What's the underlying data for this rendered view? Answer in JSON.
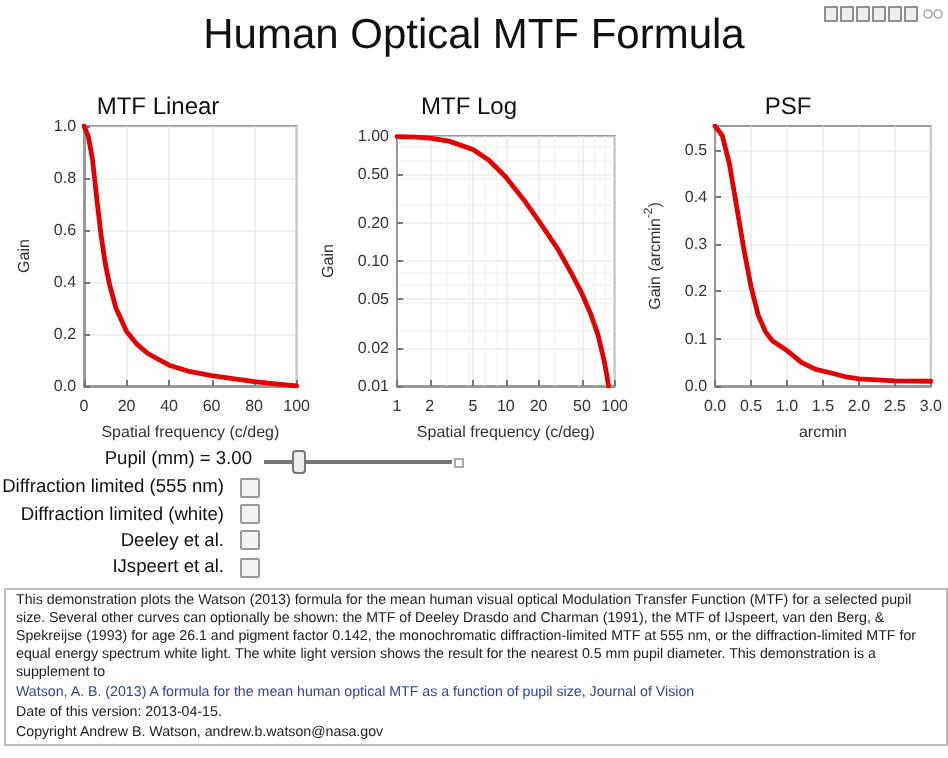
{
  "chart_data": [
    {
      "type": "other",
      "title": "Human Optical MTF Formula"
    },
    {
      "type": "line",
      "title": "MTF Linear",
      "xlabel": "Spatial frequency (c/deg)",
      "ylabel": "Gain",
      "x": [
        0,
        2,
        4,
        6,
        8,
        10,
        12,
        15,
        20,
        25,
        30,
        40,
        50,
        60,
        70,
        80,
        90,
        100
      ],
      "series": [
        {
          "color": "#e00000",
          "values": [
            1.0,
            0.96,
            0.87,
            0.72,
            0.58,
            0.47,
            0.39,
            0.3,
            0.21,
            0.16,
            0.125,
            0.08,
            0.055,
            0.04,
            0.028,
            0.017,
            0.008,
            0.0
          ]
        }
      ],
      "xlim": [
        0,
        100
      ],
      "xticks": [
        0,
        20,
        40,
        60,
        80,
        100
      ],
      "ylim": [
        0,
        1
      ],
      "yticks": [
        {
          "value": 0,
          "label": "0.0"
        },
        {
          "value": 0.2,
          "label": "0.2"
        },
        {
          "value": 0.4,
          "label": "0.4"
        },
        {
          "value": 0.6,
          "label": "0.6"
        },
        {
          "value": 0.8,
          "label": "0.8"
        },
        {
          "value": 1,
          "label": "1.0"
        }
      ],
      "grid": true,
      "marker": "none"
    },
    {
      "type": "line",
      "title": "MTF Log",
      "xlabel": "Spatial frequency (c/deg)",
      "ylabel": "Gain",
      "x": [
        1,
        1.5,
        2,
        3,
        5,
        7,
        10,
        15,
        20,
        30,
        40,
        50,
        60,
        70,
        80,
        85,
        88
      ],
      "series": [
        {
          "color": "#e00000",
          "values": [
            0.99,
            0.98,
            0.96,
            0.91,
            0.78,
            0.64,
            0.47,
            0.3,
            0.21,
            0.125,
            0.08,
            0.055,
            0.038,
            0.026,
            0.016,
            0.012,
            0.01
          ]
        }
      ],
      "xlim": [
        1,
        100
      ],
      "xticks": [
        1,
        2,
        5,
        10,
        20,
        50,
        100
      ],
      "ylim": [
        0.01,
        1
      ],
      "yticks": [
        {
          "value": 0.01,
          "label": "0.01"
        },
        {
          "value": 0.02,
          "label": "0.02"
        },
        {
          "value": 0.05,
          "label": "0.05"
        },
        {
          "value": 0.1,
          "label": "0.10"
        },
        {
          "value": 0.2,
          "label": "0.20"
        },
        {
          "value": 0.5,
          "label": "0.50"
        },
        {
          "value": 1,
          "label": "1.00"
        }
      ],
      "log": "xy",
      "grid": true,
      "marker": "none"
    },
    {
      "type": "line",
      "title": "PSF",
      "xlabel": "arcmin",
      "ylabel": "Gain (arcmin$^{-2}$)",
      "x": [
        0,
        0.1,
        0.2,
        0.3,
        0.4,
        0.5,
        0.6,
        0.7,
        0.8,
        1.0,
        1.2,
        1.4,
        1.6,
        1.8,
        2.0,
        2.5,
        3.0
      ],
      "series": [
        {
          "color": "#e00000",
          "values": [
            0.55,
            0.53,
            0.47,
            0.38,
            0.29,
            0.21,
            0.15,
            0.115,
            0.095,
            0.075,
            0.05,
            0.035,
            0.028,
            0.02,
            0.015,
            0.011,
            0.01
          ]
        }
      ],
      "xlim": [
        0,
        3
      ],
      "xticks": [
        {
          "value": 0,
          "label": "0.0"
        },
        {
          "value": 0.5,
          "label": "0.5"
        },
        {
          "value": 1,
          "label": "1.0"
        },
        {
          "value": 1.5,
          "label": "1.5"
        },
        {
          "value": 2,
          "label": "2.0"
        },
        {
          "value": 2.5,
          "label": "2.5"
        },
        {
          "value": 3,
          "label": "3.0"
        }
      ],
      "ylim": [
        0,
        0.55
      ],
      "yticks": [
        {
          "value": 0,
          "label": "0.0"
        },
        {
          "value": 0.1,
          "label": "0.1"
        },
        {
          "value": 0.2,
          "label": "0.2"
        },
        {
          "value": 0.3,
          "label": "0.3"
        },
        {
          "value": 0.4,
          "label": "0.4"
        },
        {
          "value": 0.5,
          "label": "0.5"
        }
      ],
      "grid": true,
      "marker": "none"
    },
    {
      "type": "other",
      "annotations": [
        "Pupil (mm) =  3.00",
        "Diffraction limited (555 nm)",
        "Diffraction limited (white)",
        "Deeley et al.",
        "IJspeert et al.",
        "This demonstration plots the Watson (2013) formula for the mean human visual optical Modulation Transfer Function (MTF) for a selected pupil size. Several other curves can optionally be shown: the MTF of Deeley Drasdo and Charman (1991), the MTF of IJspeert, van den Berg, & Spekreijse (1993) for age 26.1 and pigment factor 0.142, the monochromatic diffraction-limited MTF at 555 nm, or the diffraction-limited MTF for equal energy spectrum white light. The white light version shows the result for the nearest 0.5 mm pupil diameter. This demonstration is a supplement to",
        "Watson, A. B. (2013) A formula for the mean human optical MTF as a function of pupil size, Journal of Vision",
        "Date of this version: 2013-04-15.",
        "Copyright Andrew B. Watson, andrew.b.watson@nasa.gov"
      ]
    }
  ]
}
